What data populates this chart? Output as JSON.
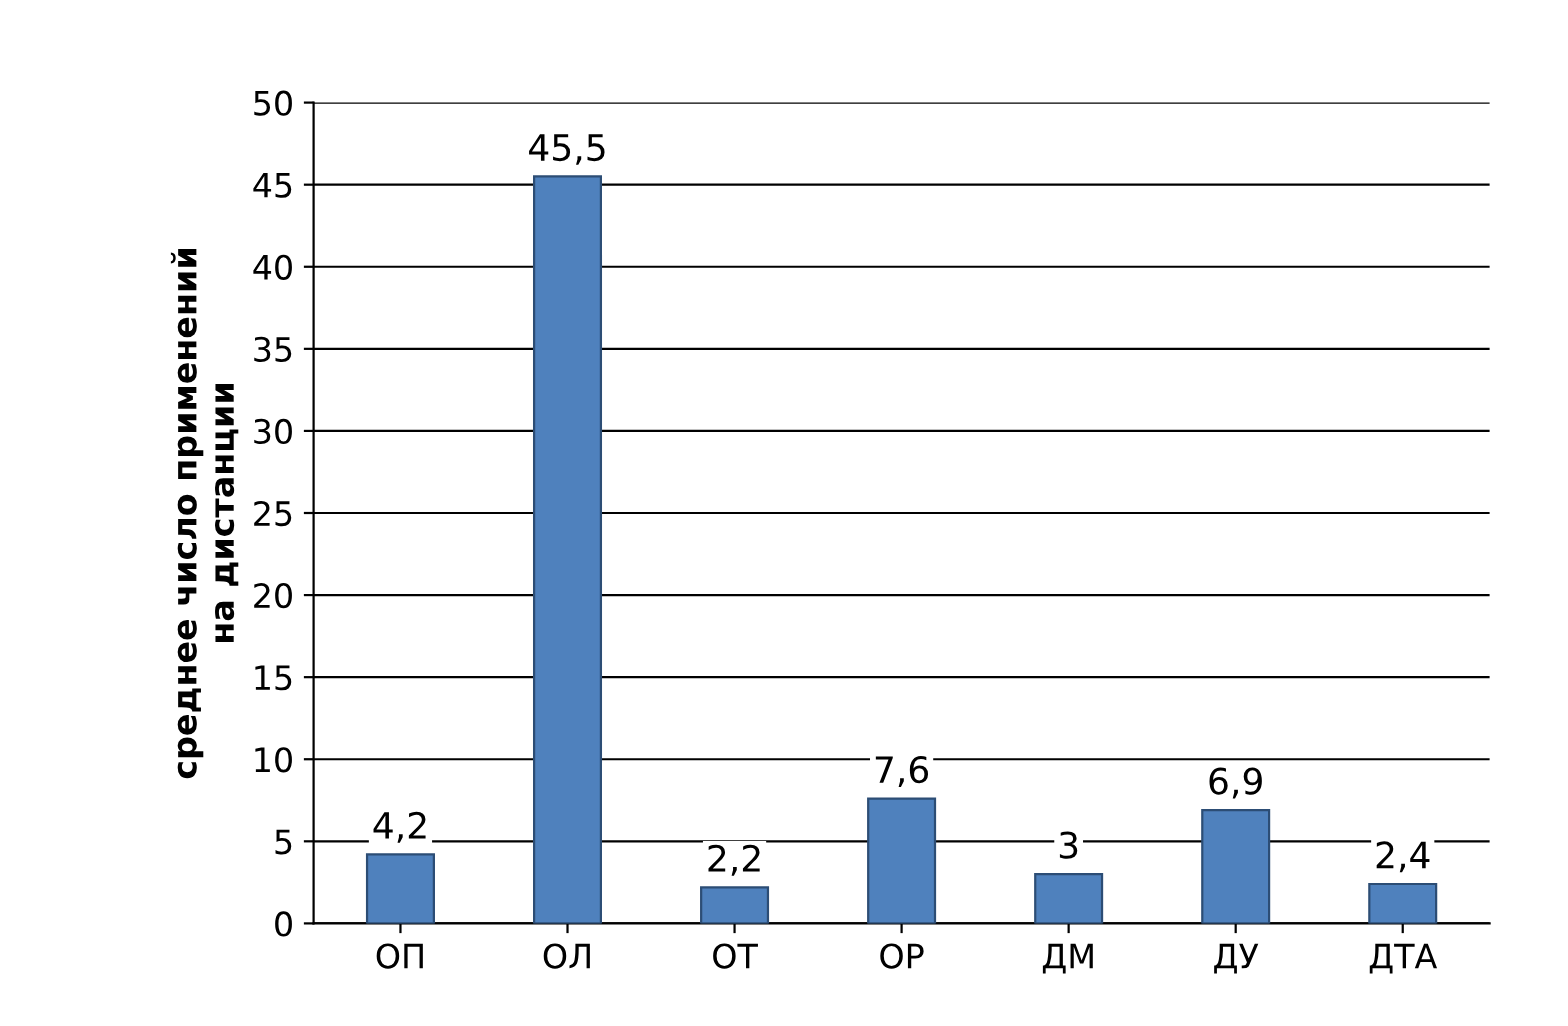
{
  "chart_data": {
    "type": "bar",
    "ylabel": "среднее число применений\nна дистанции",
    "categories": [
      "ОП",
      "ОЛ",
      "ОТ",
      "ОР",
      "ДМ",
      "ДУ",
      "ДТА"
    ],
    "values": [
      4.2,
      45.5,
      2.2,
      7.6,
      3,
      6.9,
      2.4
    ],
    "value_labels": [
      "4,2",
      "45,5",
      "2,2",
      "7,6",
      "3",
      "6,9",
      "2,4"
    ],
    "color": "#4f81bd",
    "ylim": [
      0,
      50
    ],
    "yticks": [
      0,
      5,
      10,
      15,
      20,
      25,
      30,
      35,
      40,
      45,
      50
    ],
    "grid": "y"
  }
}
